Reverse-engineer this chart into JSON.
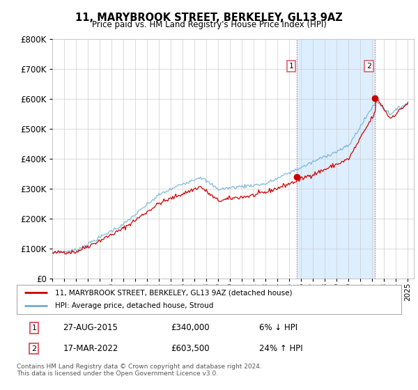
{
  "title": "11, MARYBROOK STREET, BERKELEY, GL13 9AZ",
  "subtitle": "Price paid vs. HM Land Registry's House Price Index (HPI)",
  "ylim": [
    0,
    800000
  ],
  "xlim_start": 1995.0,
  "xlim_end": 2025.5,
  "hpi_color": "#6baed6",
  "price_color": "#cc0000",
  "vline_color": "#e06070",
  "highlight_color": "#ddeeff",
  "bg_color": "#ffffff",
  "grid_color": "#cccccc",
  "legend_label_1": "11, MARYBROOK STREET, BERKELEY, GL13 9AZ (detached house)",
  "legend_label_2": "HPI: Average price, detached house, Stroud",
  "annotation_1_num": "1",
  "annotation_1_date": "27-AUG-2015",
  "annotation_1_price": "£340,000",
  "annotation_1_hpi": "6% ↓ HPI",
  "annotation_2_num": "2",
  "annotation_2_date": "17-MAR-2022",
  "annotation_2_price": "£603,500",
  "annotation_2_hpi": "24% ↑ HPI",
  "footer": "Contains HM Land Registry data © Crown copyright and database right 2024.\nThis data is licensed under the Open Government Licence v3.0.",
  "sale_1_x": 2015.65,
  "sale_1_y": 340000,
  "sale_2_x": 2022.21,
  "sale_2_y": 603500
}
